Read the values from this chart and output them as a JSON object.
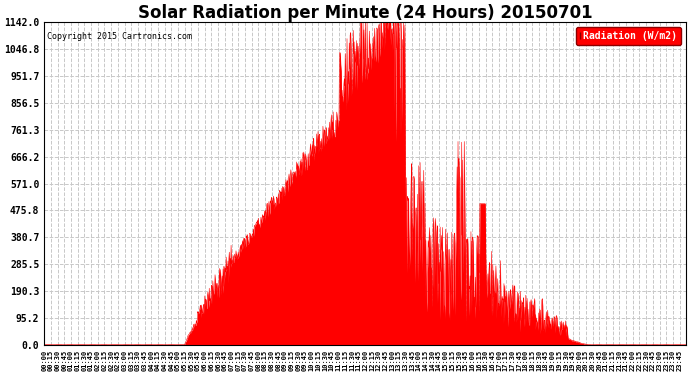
{
  "title": "Solar Radiation per Minute (24 Hours) 20150701",
  "copyright_text": "Copyright 2015 Cartronics.com",
  "legend_label": "Radiation (W/m2)",
  "y_tick_labels": [
    "0.0",
    "95.2",
    "190.3",
    "285.5",
    "380.7",
    "475.8",
    "571.0",
    "666.2",
    "761.3",
    "856.5",
    "951.7",
    "1046.8",
    "1142.0"
  ],
  "y_tick_values": [
    0.0,
    95.2,
    190.3,
    285.5,
    380.7,
    475.8,
    571.0,
    666.2,
    761.3,
    856.5,
    951.7,
    1046.8,
    1142.0
  ],
  "ylim": [
    0.0,
    1142.0
  ],
  "fill_color": "#FF0000",
  "line_color": "#FF0000",
  "dashed_zero_color": "#FF0000",
  "background_color": "#FFFFFF",
  "grid_color": "#C8C8C8",
  "title_fontsize": 12,
  "x_tick_interval_minutes": 15,
  "total_minutes": 1440,
  "sunrise_min": 315,
  "sunset_min": 1225,
  "peak_min": 770,
  "peak_val": 1142.0
}
